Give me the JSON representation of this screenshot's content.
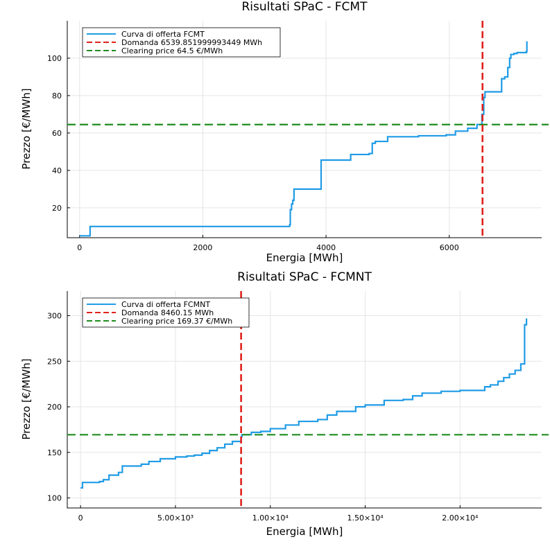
{
  "colors": {
    "supply": "#1f9be6",
    "demand": "#e0201b",
    "clearing": "#1e8c1e"
  },
  "chart_data": [
    {
      "type": "line",
      "title": "Risultati SPaC - FCMT",
      "xlabel": "Energia [MWh]",
      "ylabel": "Prezzo [€/MWh]",
      "xlim": [
        -200,
        7500
      ],
      "ylim": [
        4,
        120
      ],
      "xticks": [
        0,
        2000,
        4000,
        6000
      ],
      "xtick_labels": [
        "0",
        "2000",
        "4000",
        "6000"
      ],
      "yticks": [
        20,
        40,
        60,
        80,
        100
      ],
      "ytick_labels": [
        "20",
        "40",
        "60",
        "80",
        "100"
      ],
      "legend": [
        "Curva di offerta FCMT",
        "Domanda 6539.851999993449 MWh",
        "Clearing price 64.5 €/MWh"
      ],
      "legend_position": "top-left",
      "demand": 6539.851999993449,
      "clearing_price": 64.5,
      "series": [
        {
          "name": "Curva di offerta FCMT",
          "x": [
            0,
            170,
            170,
            3400,
            3410,
            3420,
            3440,
            3460,
            3480,
            3920,
            3920,
            4200,
            4400,
            4700,
            4750,
            4800,
            5000,
            5500,
            5950,
            6100,
            6300,
            6450,
            6530,
            6530,
            6560,
            6580,
            6600,
            6800,
            6850,
            6900,
            6950,
            6980,
            7000,
            7050,
            7100,
            7250,
            7260
          ],
          "y": [
            5,
            5,
            10,
            10,
            11,
            19,
            22,
            24,
            30,
            30,
            45.5,
            45.5,
            48.5,
            49,
            54.5,
            55.5,
            58,
            58.5,
            59,
            61,
            62.5,
            64.5,
            64.5,
            70,
            79,
            82,
            82,
            82,
            89,
            90,
            95,
            100,
            102,
            102.5,
            103,
            103.5,
            109
          ]
        }
      ]
    },
    {
      "type": "line",
      "title": "Risultati SPaC - FCMNT",
      "xlabel": "Energia [MWh]",
      "ylabel": "Prezzo [€/MWh]",
      "xlim": [
        -700,
        24300
      ],
      "ylim": [
        89,
        327
      ],
      "xticks": [
        0,
        5000,
        10000,
        15000,
        20000
      ],
      "xtick_labels": [
        "0",
        "5.00×10³",
        "1.00×10⁴",
        "1.50×10⁴",
        "2.00×10⁴"
      ],
      "yticks": [
        100,
        150,
        200,
        250,
        300
      ],
      "ytick_labels": [
        "100",
        "150",
        "200",
        "250",
        "300"
      ],
      "legend": [
        "Curva di offerta FCMNT",
        "Domanda 8460.15 MWh",
        "Clearing price 169.37 €/MWh"
      ],
      "legend_position": "top-left",
      "demand": 8460.15,
      "clearing_price": 169.37,
      "series": [
        {
          "name": "Curva di offerta FCMNT",
          "x": [
            0,
            100,
            1000,
            1200,
            1500,
            2000,
            2200,
            3200,
            3600,
            4200,
            5000,
            5600,
            6000,
            6400,
            6800,
            7200,
            7600,
            8000,
            8460,
            8500,
            9000,
            9500,
            10000,
            10800,
            11500,
            12500,
            13000,
            13500,
            14500,
            15000,
            16000,
            17000,
            17500,
            18000,
            19000,
            20000,
            21000,
            21300,
            21600,
            22000,
            22300,
            22600,
            22900,
            23200,
            23400,
            23500
          ],
          "y": [
            111,
            117,
            118,
            120,
            125,
            128,
            135,
            137,
            140,
            143,
            145,
            146,
            147,
            149,
            152,
            155,
            159,
            162,
            167,
            169.37,
            172,
            173,
            176,
            180,
            184,
            186,
            191,
            195,
            200,
            202,
            207,
            208,
            212,
            215,
            217,
            218,
            218,
            222,
            224,
            228,
            232,
            236,
            240,
            247,
            290,
            297
          ]
        }
      ]
    }
  ]
}
